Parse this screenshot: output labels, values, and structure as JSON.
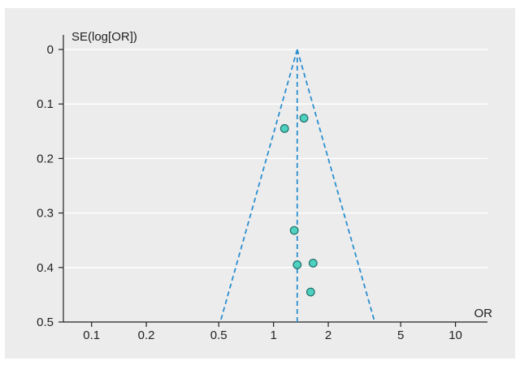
{
  "chart_data": {
    "type": "scatter",
    "subtype": "funnel-plot",
    "title": "",
    "xlabel": "OR",
    "ylabel": "SE(log[OR])",
    "x_scale": "log",
    "x_ticks": [
      0.1,
      0.2,
      0.5,
      1,
      2,
      5,
      10
    ],
    "x_tick_labels": [
      "0.1",
      "0.2",
      "0.5",
      "1",
      "2",
      "5",
      "10"
    ],
    "xlim": [
      0.07,
      15
    ],
    "y_reversed": true,
    "y_ticks": [
      0,
      0.1,
      0.2,
      0.3,
      0.4,
      0.5
    ],
    "y_tick_labels": [
      "0",
      "0.1",
      "0.2",
      "0.3",
      "0.4",
      "0.5"
    ],
    "ylim": [
      0,
      0.5
    ],
    "grid": "horizontal",
    "pooled_or": 1.35,
    "funnel_bounds_at_max_se": [
      0.51,
      3.6
    ],
    "points": [
      {
        "x": 1.47,
        "y": 0.126
      },
      {
        "x": 1.15,
        "y": 0.145
      },
      {
        "x": 1.3,
        "y": 0.332
      },
      {
        "x": 1.35,
        "y": 0.395
      },
      {
        "x": 1.65,
        "y": 0.392
      },
      {
        "x": 1.6,
        "y": 0.445
      }
    ],
    "colors": {
      "background": "#ececec",
      "gridline": "#ffffff",
      "axis": "#222222",
      "funnel_line": "#2b8fd0",
      "point_fill": "#4fd1c0",
      "point_stroke": "#1f6f6a"
    }
  }
}
